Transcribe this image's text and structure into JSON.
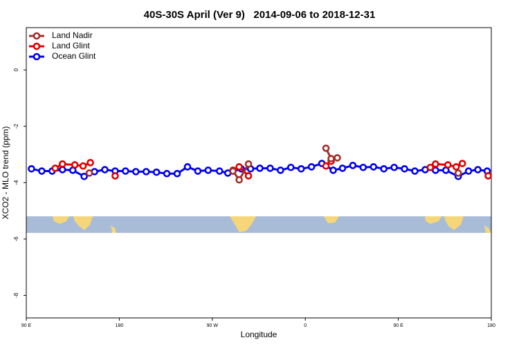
{
  "chart_data": {
    "type": "line",
    "title": "40S-30S April (Ver 9)   2014-09-06 to 2018-12-31",
    "xlabel": "Longitude",
    "ylabel": "XCO2 - MLO trend (ppm)",
    "xlim": [
      90,
      540
    ],
    "ylim": [
      -8.8,
      1.5
    ],
    "xticks": [
      {
        "value": 90,
        "label": "90 E"
      },
      180,
      {
        "value": 270,
        "label": "90 W"
      },
      {
        "value": 360,
        "label": "0"
      },
      {
        "value": 450,
        "label": "90 E"
      },
      {
        "value": 540,
        "label": "180"
      }
    ],
    "yticks": [
      0,
      -2,
      -4,
      -6,
      -8
    ],
    "legend": "top-left",
    "series": [
      {
        "name": "Ocean Glint",
        "color": "#0000ee",
        "x": [
          95,
          105,
          115,
          125,
          135,
          146,
          156,
          166,
          176,
          186,
          196,
          206,
          216,
          226,
          236,
          246,
          256,
          266,
          277,
          285,
          298,
          307,
          316,
          326,
          336,
          346,
          356,
          366,
          376,
          387,
          396,
          406,
          416,
          426,
          436,
          446,
          456,
          466,
          476,
          486,
          496,
          508,
          518,
          527,
          536
        ],
        "values": [
          -3.51,
          -3.59,
          -3.59,
          -3.54,
          -3.56,
          -3.78,
          -3.61,
          -3.54,
          -3.59,
          -3.59,
          -3.61,
          -3.61,
          -3.63,
          -3.68,
          -3.68,
          -3.44,
          -3.59,
          -3.56,
          -3.59,
          -3.66,
          -3.51,
          -3.51,
          -3.49,
          -3.49,
          -3.56,
          -3.46,
          -3.51,
          -3.44,
          -3.32,
          -3.56,
          -3.49,
          -3.39,
          -3.46,
          -3.44,
          -3.51,
          -3.46,
          -3.51,
          -3.59,
          -3.54,
          -3.56,
          -3.56,
          -3.78,
          -3.59,
          -3.54,
          -3.59
        ]
      },
      {
        "name": "Land Glint",
        "color": "#e00000",
        "x": [
          118,
          125,
          137,
          145,
          152,
          null,
          176,
          null,
          290,
          296,
          305,
          null,
          380,
          385,
          null,
          481,
          486,
          498,
          506,
          512,
          null,
          537
        ],
        "values": [
          -3.49,
          -3.34,
          -3.37,
          -3.41,
          -3.29,
          null,
          -3.76,
          null,
          -3.56,
          -3.44,
          -3.76,
          null,
          -3.41,
          -3.24,
          null,
          -3.46,
          -3.34,
          -3.37,
          -3.44,
          -3.32,
          null,
          -3.76
        ]
      },
      {
        "name": "Land Nadir",
        "color": "#a0302a",
        "x": [
          151,
          null,
          290,
          296,
          305,
          null,
          380,
          385,
          391,
          null,
          508
        ],
        "values": [
          -3.66,
          null,
          -3.59,
          -3.9,
          -3.34,
          null,
          -2.78,
          -3.15,
          -3.12,
          null,
          -3.66
        ]
      }
    ]
  }
}
